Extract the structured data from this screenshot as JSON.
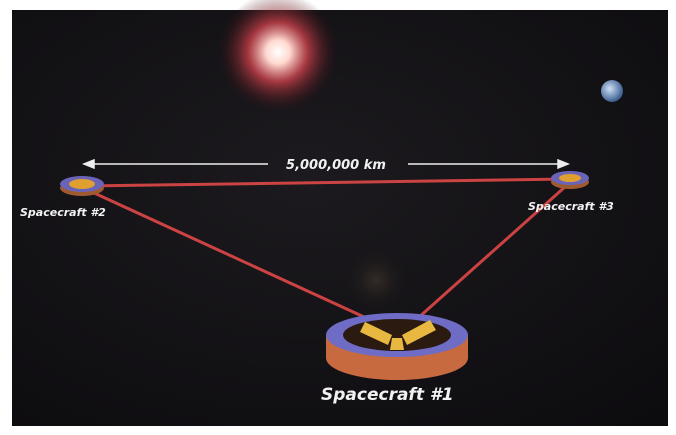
{
  "diagram": {
    "distance_label": "5,000,000 km",
    "nodes": [
      {
        "label": "Spacecraft #1"
      },
      {
        "label": "Spacecraft #2"
      },
      {
        "label": "Spacecraft #3"
      }
    ]
  }
}
